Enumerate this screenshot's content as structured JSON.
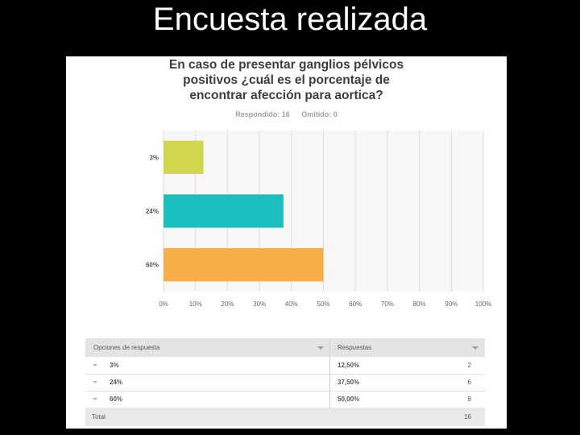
{
  "slide": {
    "title": "Encuesta realizada"
  },
  "question": {
    "lines": [
      "En caso de presentar ganglios pélvicos",
      "positivos ¿cuál es el porcentaje de",
      "encontrar afección para aortica?"
    ],
    "answered": "Respondido: 16",
    "skipped": "Omitido: 0"
  },
  "chart_data": {
    "type": "bar",
    "orientation": "horizontal",
    "categories": [
      "3%",
      "24%",
      "60%"
    ],
    "values": [
      12.5,
      37.5,
      50.0
    ],
    "colors": [
      "#d1d64f",
      "#1bbfbf",
      "#f7ae47"
    ],
    "xlim": [
      0,
      100
    ],
    "x_ticks": [
      "0%",
      "10%",
      "20%",
      "30%",
      "40%",
      "50%",
      "60%",
      "70%",
      "80%",
      "90%",
      "100%"
    ],
    "grid": true
  },
  "table": {
    "headers": [
      "Opciones de respuesta",
      "Respuestas"
    ],
    "rows": [
      {
        "option": "3%",
        "percent": "12,50%",
        "count": "2"
      },
      {
        "option": "24%",
        "percent": "37,50%",
        "count": "6"
      },
      {
        "option": "60%",
        "percent": "50,00%",
        "count": "8"
      }
    ],
    "total_label": "Total",
    "total_value": "16"
  }
}
